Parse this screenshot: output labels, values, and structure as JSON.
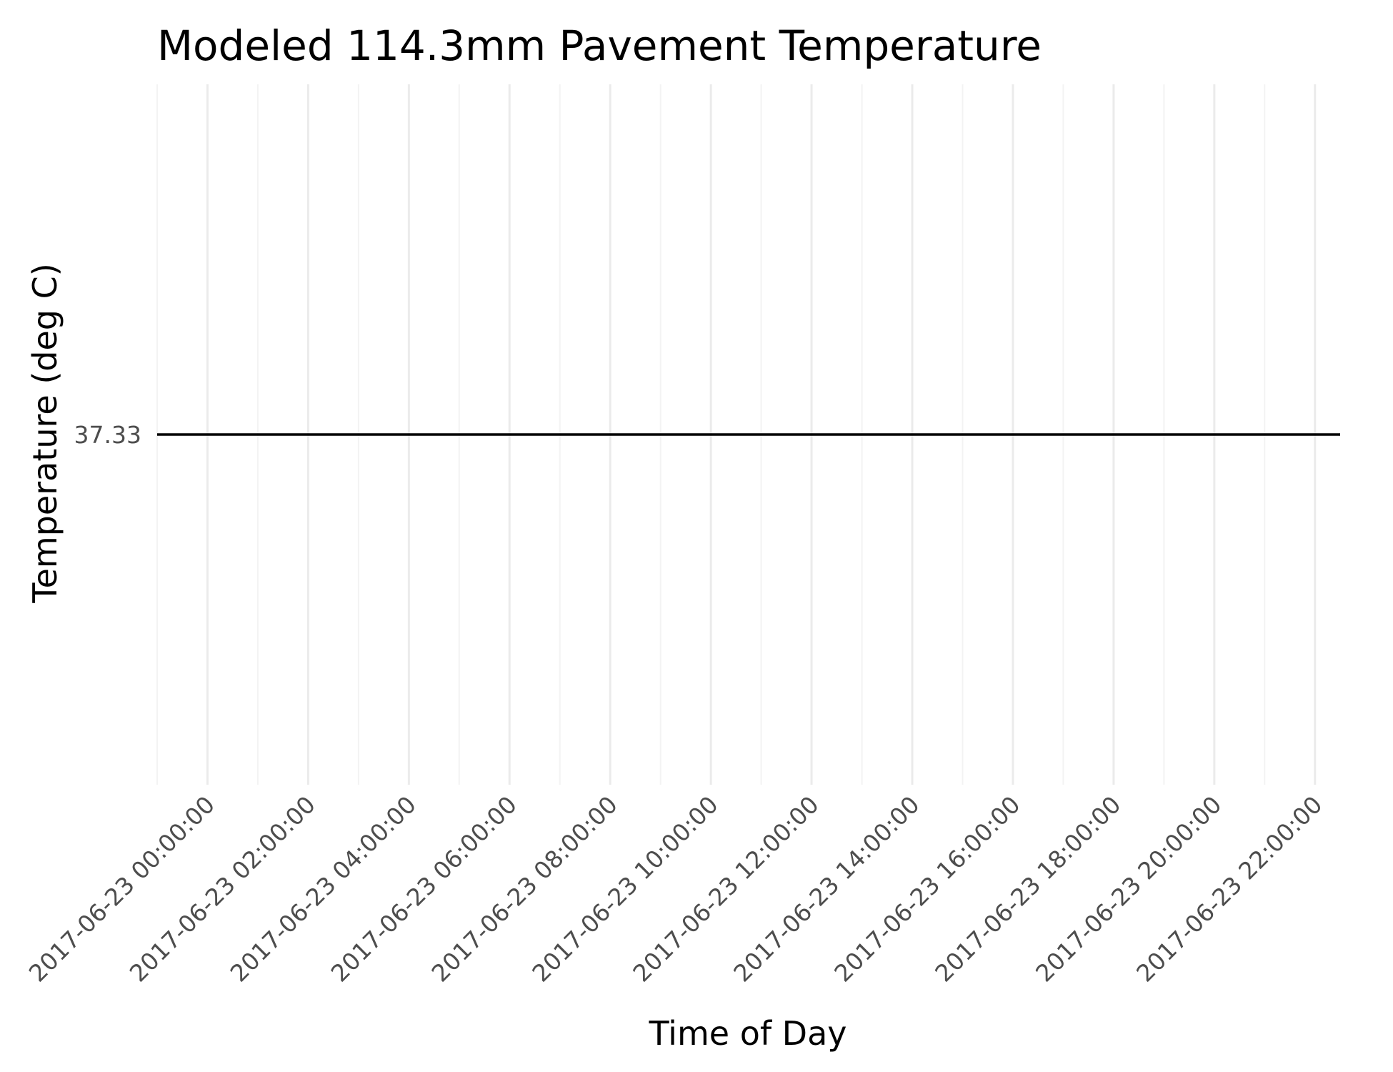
{
  "chart_data": {
    "type": "line",
    "title": "Modeled 114.3mm Pavement Temperature",
    "xlabel": "Time of Day",
    "ylabel": "Temperature (deg C)",
    "x_tick_labels": [
      "2017-06-23 00:00:00",
      "2017-06-23 02:00:00",
      "2017-06-23 04:00:00",
      "2017-06-23 06:00:00",
      "2017-06-23 08:00:00",
      "2017-06-23 10:00:00",
      "2017-06-23 12:00:00",
      "2017-06-23 14:00:00",
      "2017-06-23 16:00:00",
      "2017-06-23 18:00:00",
      "2017-06-23 20:00:00",
      "2017-06-23 22:00:00"
    ],
    "y_tick_labels": [
      "37.33"
    ],
    "x": [
      "2017-06-22 23:00:00",
      "2017-06-23 22:30:00"
    ],
    "y": [
      37.33,
      37.33
    ],
    "xlim": [
      "2017-06-22 23:00:00",
      "2017-06-23 22:30:00"
    ],
    "ylim": [
      36.33,
      38.33
    ],
    "grid": {
      "major": true,
      "minor": true
    },
    "colors": {
      "line": "#000000",
      "grid": "#ebebeb",
      "tick_text": "#4d4d4d"
    }
  }
}
